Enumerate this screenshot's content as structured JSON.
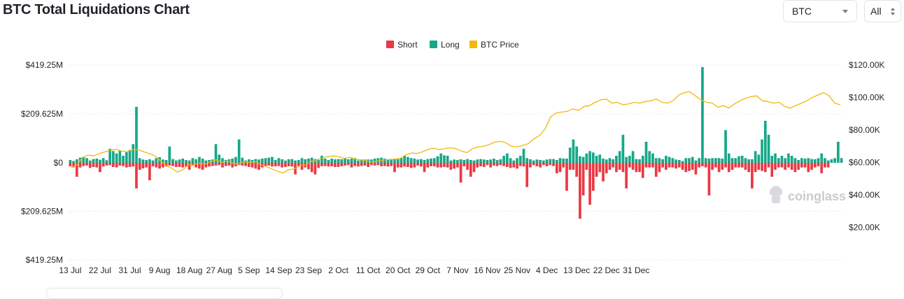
{
  "title": "BTC Total Liquidations Chart",
  "controls": {
    "coin": "BTC",
    "range": "All"
  },
  "watermark": "coinglass",
  "colors": {
    "short": "#ea3943",
    "long": "#16a889",
    "price": "#f0b90b",
    "grid": "#efefef",
    "axis_text": "#1f2329"
  },
  "chart_data": {
    "type": "bar",
    "legend": [
      "Short",
      "Long",
      "BTC Price"
    ],
    "legend_position": "top-center",
    "y_left_ticks": [
      "$419.25M",
      "$209.625M",
      "$0",
      "$209.625M",
      "$419.25M"
    ],
    "y_left_range": [
      -419.25,
      419.25
    ],
    "y_left_unit": "M USD",
    "y_right_ticks": [
      "$120.00K",
      "$100.00K",
      "$80.00K",
      "$60.00K",
      "$40.00K",
      "$20.00K"
    ],
    "y_right_range": [
      0,
      120000
    ],
    "x_tick_labels": [
      "13 Jul",
      "22 Jul",
      "31 Jul",
      "9 Aug",
      "18 Aug",
      "27 Aug",
      "5 Sep",
      "14 Sep",
      "23 Sep",
      "2 Oct",
      "11 Oct",
      "20 Oct",
      "29 Oct",
      "7 Nov",
      "16 Nov",
      "25 Nov",
      "4 Dec",
      "13 Dec",
      "22 Dec",
      "31 Dec"
    ],
    "x_tick_start_day": 0,
    "x_tick_step_days": 9,
    "grid": true,
    "series": [
      {
        "name": "Long",
        "values": [
          12,
          8,
          15,
          22,
          25,
          20,
          10,
          16,
          18,
          13,
          20,
          11,
          60,
          50,
          40,
          52,
          30,
          45,
          55,
          80,
          240,
          20,
          14,
          12,
          15,
          10,
          20,
          24,
          14,
          12,
          70,
          16,
          10,
          14,
          18,
          12,
          10,
          20,
          15,
          25,
          18,
          10,
          12,
          14,
          80,
          35,
          20,
          12,
          15,
          18,
          25,
          100,
          22,
          10,
          15,
          12,
          16,
          14,
          18,
          20,
          22,
          25,
          12,
          20,
          15,
          10,
          15,
          16,
          10,
          12,
          20,
          15,
          18,
          22,
          16,
          12,
          30,
          18,
          12,
          18,
          15,
          16,
          15,
          20,
          15,
          18,
          20,
          10,
          14,
          14,
          14,
          14,
          18,
          20,
          22,
          18,
          12,
          14,
          16,
          15,
          20,
          30,
          25,
          20,
          18,
          14,
          16,
          12,
          16,
          18,
          20,
          28,
          40,
          32,
          30,
          10,
          14,
          12,
          15,
          12,
          16,
          12,
          10,
          14,
          16,
          14,
          12,
          14,
          18,
          12,
          15,
          30,
          40,
          20,
          10,
          20,
          30,
          60,
          20,
          15,
          10,
          14,
          12,
          10,
          14,
          16,
          16,
          12,
          20,
          18,
          18,
          65,
          100,
          70,
          28,
          25,
          40,
          50,
          44,
          30,
          35,
          18,
          14,
          20,
          15,
          30,
          50,
          120,
          25,
          30,
          50,
          16,
          15,
          30,
          90,
          50,
          40,
          20,
          20,
          15,
          30,
          25,
          20,
          14,
          12,
          8,
          20,
          20,
          25,
          10,
          20,
          410,
          20,
          18,
          20,
          20,
          20,
          18,
          140,
          40,
          20,
          20,
          28,
          30,
          20,
          15,
          15,
          50,
          35,
          100,
          180,
          120,
          30,
          40,
          20,
          30,
          20,
          40,
          30,
          20,
          12,
          20,
          18,
          20,
          16,
          15,
          20,
          40,
          20,
          10,
          15,
          20,
          90,
          20
        ]
      },
      {
        "name": "Short",
        "values": [
          15,
          20,
          60,
          20,
          14,
          12,
          22,
          18,
          20,
          40,
          16,
          12,
          10,
          18,
          20,
          12,
          14,
          20,
          18,
          16,
          110,
          30,
          24,
          20,
          75,
          15,
          20,
          25,
          20,
          16,
          12,
          14,
          18,
          18,
          20,
          16,
          30,
          12,
          20,
          25,
          30,
          20,
          16,
          14,
          12,
          10,
          20,
          14,
          12,
          20,
          15,
          10,
          12,
          14,
          18,
          20,
          25,
          30,
          20,
          14,
          12,
          16,
          15,
          14,
          20,
          18,
          15,
          16,
          50,
          14,
          30,
          20,
          28,
          40,
          50,
          22,
          15,
          14,
          16,
          15,
          18,
          18,
          15,
          12,
          10,
          20,
          14,
          16,
          14,
          12,
          18,
          10,
          12,
          10,
          15,
          14,
          16,
          14,
          40,
          20,
          20,
          16,
          18,
          22,
          20,
          12,
          16,
          40,
          20,
          15,
          15,
          20,
          20,
          18,
          20,
          30,
          25,
          20,
          85,
          15,
          30,
          60,
          40,
          20,
          15,
          18,
          10,
          20,
          12,
          14,
          10,
          14,
          18,
          22,
          20,
          25,
          14,
          16,
          104,
          20,
          10,
          15,
          20,
          10,
          15,
          10,
          14,
          45,
          40,
          20,
          120,
          30,
          30,
          60,
          240,
          140,
          30,
          180,
          120,
          60,
          40,
          80,
          45,
          30,
          20,
          40,
          30,
          40,
          110,
          20,
          30,
          40,
          40,
          65,
          20,
          20,
          20,
          60,
          40,
          20,
          30,
          20,
          20,
          25,
          20,
          30,
          40,
          35,
          30,
          50,
          20,
          15,
          20,
          140,
          30,
          20,
          40,
          30,
          20,
          40,
          30,
          20,
          20,
          20,
          30,
          40,
          110,
          40,
          30,
          35,
          40,
          20,
          60,
          30,
          20,
          20,
          30,
          20,
          30,
          40,
          30,
          20,
          20,
          40,
          30,
          20,
          15,
          45,
          20,
          20
        ]
      },
      {
        "name": "BTC Price",
        "values": [
          57000,
          58500,
          63000,
          64500,
          64000,
          65500,
          66500,
          67500,
          68000,
          67000,
          66500,
          68000,
          67800,
          66500,
          65500,
          64000,
          61000,
          58000,
          56500,
          54000,
          55500,
          58500,
          58800,
          59500,
          59000,
          60500,
          61500,
          60000,
          61000,
          59500,
          59000,
          60500,
          60000,
          60500,
          58500,
          57500,
          56000,
          54500,
          53500,
          55500,
          56000,
          58000,
          58500,
          60500,
          61500,
          62800,
          63500,
          64000,
          63500,
          62500,
          63200,
          62000,
          61500,
          61000,
          60000,
          60800,
          61500,
          61800,
          62000,
          62500,
          64500,
          65800,
          65500,
          66500,
          68000,
          68800,
          67800,
          68500,
          69000,
          68500,
          67000,
          66000,
          68500,
          69500,
          70000,
          71000,
          72500,
          73000,
          72000,
          70000,
          69500,
          70500,
          71500,
          74500,
          76500,
          80500,
          88000,
          90500,
          91000,
          91500,
          93000,
          92000,
          94500,
          95000,
          97000,
          98500,
          99000,
          96500,
          97000,
          95500,
          96000,
          97000,
          96500,
          97500,
          98000,
          99000,
          97000,
          96500,
          98000,
          101500,
          103000,
          103500,
          101000,
          98500,
          97000,
          96500,
          94000,
          95000,
          93500,
          96000,
          98000,
          99500,
          100500,
          101000,
          98000,
          97500,
          96500,
          97000,
          94500,
          93500,
          95000,
          96500,
          98000,
          100000,
          101500,
          103000,
          101000,
          96500,
          95500
        ]
      }
    ]
  }
}
